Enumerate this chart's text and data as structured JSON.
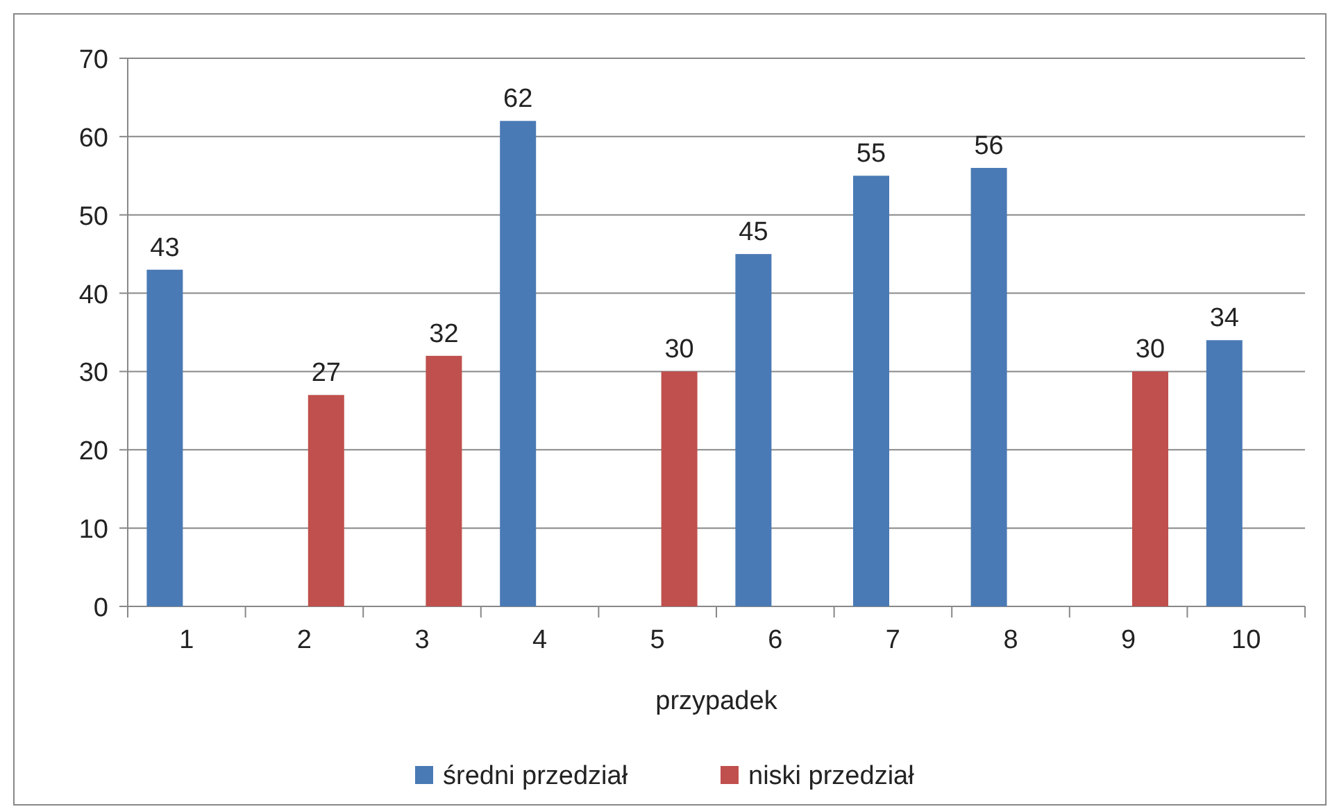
{
  "chart_data": {
    "type": "bar",
    "xlabel": "przypadek",
    "categories": [
      "1",
      "2",
      "3",
      "4",
      "5",
      "6",
      "7",
      "8",
      "9",
      "10"
    ],
    "series": [
      {
        "name": "średni przedział",
        "color": "#4a7ab5",
        "values": [
          43,
          null,
          null,
          62,
          null,
          45,
          55,
          56,
          null,
          34
        ]
      },
      {
        "name": "niski przedział",
        "color": "#c0504d",
        "values": [
          null,
          27,
          32,
          null,
          30,
          null,
          null,
          null,
          30,
          null
        ]
      }
    ],
    "ylim": [
      0,
      70
    ],
    "yticks": [
      0,
      10,
      20,
      30,
      40,
      50,
      60,
      70
    ],
    "grid": "y",
    "legend": "bottom",
    "data_labels": true
  }
}
